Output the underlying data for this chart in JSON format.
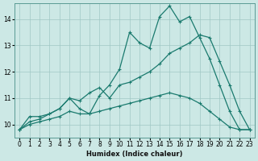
{
  "xlabel": "Humidex (Indice chaleur)",
  "bg_color": "#cce8e5",
  "grid_color": "#a0c8c4",
  "line_color": "#1a7a6e",
  "ylim": [
    9.5,
    14.6
  ],
  "xlim": [
    -0.5,
    23.5
  ],
  "yticks": [
    10,
    11,
    12,
    13,
    14
  ],
  "xticks": [
    0,
    1,
    2,
    3,
    4,
    5,
    6,
    7,
    8,
    9,
    10,
    11,
    12,
    13,
    14,
    15,
    16,
    17,
    18,
    19,
    20,
    21,
    22,
    23
  ],
  "line1_x": [
    0,
    1,
    2,
    3,
    4,
    5,
    6,
    7,
    8,
    9,
    10,
    11,
    12,
    13,
    14,
    15,
    16,
    17,
    18,
    19,
    20,
    21,
    22,
    23
  ],
  "line1_y": [
    9.8,
    10.3,
    10.3,
    10.4,
    10.6,
    11.0,
    10.6,
    10.4,
    11.1,
    11.5,
    12.1,
    13.5,
    13.1,
    12.9,
    14.1,
    14.5,
    13.9,
    14.1,
    13.3,
    12.5,
    11.5,
    10.5,
    9.8,
    9.8
  ],
  "line2_x": [
    0,
    1,
    2,
    3,
    4,
    5,
    6,
    7,
    8,
    9,
    10,
    11,
    12,
    13,
    14,
    15,
    16,
    17,
    18,
    19,
    20,
    21,
    22,
    23
  ],
  "line2_y": [
    9.8,
    10.1,
    10.2,
    10.4,
    10.6,
    11.0,
    10.9,
    11.2,
    11.4,
    11.0,
    11.5,
    11.6,
    11.8,
    12.0,
    12.3,
    12.7,
    12.9,
    13.1,
    13.4,
    13.3,
    12.4,
    11.5,
    10.5,
    9.8
  ],
  "line3_x": [
    0,
    1,
    2,
    3,
    4,
    5,
    6,
    7,
    8,
    9,
    10,
    11,
    12,
    13,
    14,
    15,
    16,
    17,
    18,
    19,
    20,
    21,
    22,
    23
  ],
  "line3_y": [
    9.8,
    10.0,
    10.1,
    10.2,
    10.3,
    10.5,
    10.4,
    10.4,
    10.5,
    10.6,
    10.7,
    10.8,
    10.9,
    11.0,
    11.1,
    11.2,
    11.1,
    11.0,
    10.8,
    10.5,
    10.2,
    9.9,
    9.8,
    9.8
  ]
}
